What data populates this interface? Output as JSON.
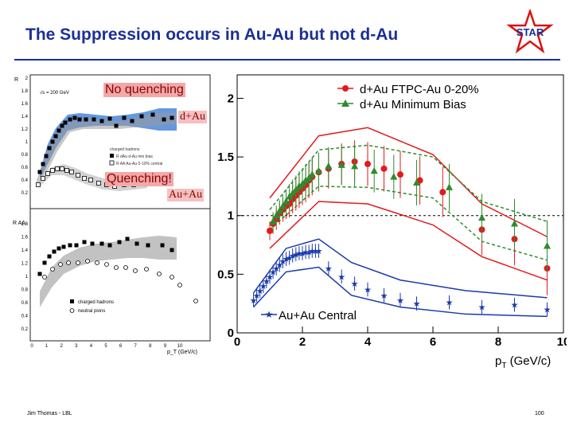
{
  "slide": {
    "title": "The Suppression occurs in Au-Au but not d-Au",
    "footer_author": "Jim Thomas - LBL",
    "page_number": "100",
    "logo_text": "STAR"
  },
  "overlays": {
    "no_quenching": "No quenching",
    "dau": "d+Au",
    "quenching": "Quenching!",
    "auau": "Au+Au"
  },
  "left_panel": {
    "top_ylabel": "R",
    "energy": "√s = 200 GeV",
    "legend_title": "charged hadrons",
    "legend_items": [
      "R dAu d-Au min bias",
      "R AA Au-Au 0-10% central"
    ],
    "bottom_ylabel": "R AA",
    "bottom_legend": [
      "charged hadrons",
      "neutral pions"
    ],
    "xlabel": "p_T (GeV/c)",
    "top_y_ticks": [
      "2",
      "1.8",
      "1.6",
      "1.4",
      "1.2",
      "1",
      "0.8",
      "0.6",
      "0.4",
      "0.2"
    ],
    "bottom_y_ticks": [
      "1.8",
      "1.6",
      "1.4",
      "1.2",
      "1",
      "0.8",
      "0.6",
      "0.4",
      "0.2"
    ],
    "x_ticks": [
      "0",
      "1",
      "2",
      "3",
      "4",
      "5",
      "6",
      "7",
      "8",
      "9",
      "10"
    ]
  },
  "chart_data": {
    "type": "scatter",
    "xlabel": "p_T (GeV/c)",
    "ylabel": "",
    "xlim": [
      0,
      10
    ],
    "ylim": [
      0,
      2.2
    ],
    "x_ticks": [
      "0",
      "2",
      "4",
      "6",
      "8",
      "10"
    ],
    "y_ticks": [
      "0",
      "0.5",
      "1",
      "1.5",
      "2"
    ],
    "reference_line": 1,
    "series": [
      {
        "name": "d+Au FTPC-Au 0-20%",
        "color": "#e31a1c",
        "marker": "circle",
        "x": [
          1.0,
          1.1,
          1.2,
          1.3,
          1.4,
          1.5,
          1.6,
          1.7,
          1.8,
          1.9,
          2.0,
          2.1,
          2.2,
          2.3,
          2.5,
          2.8,
          3.2,
          3.6,
          4.0,
          4.5,
          5.0,
          5.6,
          6.3,
          7.5,
          8.5,
          9.5
        ],
        "y": [
          0.87,
          0.93,
          0.97,
          1.02,
          1.05,
          1.08,
          1.1,
          1.14,
          1.17,
          1.2,
          1.23,
          1.26,
          1.3,
          1.33,
          1.37,
          1.4,
          1.44,
          1.46,
          1.44,
          1.4,
          1.35,
          1.3,
          1.2,
          0.88,
          0.8,
          0.55
        ]
      },
      {
        "name": "d+Au Minimum Bias",
        "color": "#2e8b2e",
        "marker": "triangle",
        "x": [
          1.1,
          1.2,
          1.3,
          1.4,
          1.5,
          1.6,
          1.7,
          1.8,
          1.9,
          2.0,
          2.1,
          2.2,
          2.3,
          2.5,
          2.8,
          3.2,
          3.6,
          4.2,
          4.8,
          5.5,
          6.5,
          7.5,
          8.5,
          9.5
        ],
        "y": [
          0.95,
          1.0,
          1.04,
          1.08,
          1.12,
          1.16,
          1.19,
          1.22,
          1.25,
          1.27,
          1.3,
          1.32,
          1.35,
          1.38,
          1.42,
          1.43,
          1.42,
          1.38,
          1.33,
          1.28,
          1.24,
          0.98,
          0.93,
          0.74
        ]
      },
      {
        "name": "Au+Au Central",
        "color": "#1a3aaa",
        "marker": "star",
        "x": [
          0.5,
          0.6,
          0.7,
          0.8,
          0.9,
          1.0,
          1.1,
          1.2,
          1.3,
          1.4,
          1.5,
          1.6,
          1.7,
          1.8,
          1.9,
          2.0,
          2.1,
          2.2,
          2.3,
          2.4,
          2.5,
          2.8,
          3.2,
          3.6,
          4.0,
          4.5,
          5.0,
          5.5,
          6.5,
          7.5,
          8.5,
          9.5
        ],
        "y": [
          0.28,
          0.32,
          0.36,
          0.4,
          0.44,
          0.48,
          0.52,
          0.55,
          0.58,
          0.61,
          0.63,
          0.64,
          0.66,
          0.67,
          0.68,
          0.68,
          0.69,
          0.69,
          0.7,
          0.7,
          0.7,
          0.55,
          0.48,
          0.42,
          0.37,
          0.32,
          0.28,
          0.25,
          0.26,
          0.22,
          0.24,
          0.2
        ]
      }
    ],
    "bands": [
      {
        "name": "d+Au FTPC-Au 0-20% upper",
        "color": "#e31a1c",
        "style": "solid",
        "x": [
          1.0,
          2.5,
          4.0,
          6.0,
          7.5,
          9.5
        ],
        "y": [
          1.15,
          1.68,
          1.75,
          1.52,
          1.1,
          0.82
        ]
      },
      {
        "name": "d+Au FTPC-Au 0-20% lower",
        "color": "#e31a1c",
        "style": "solid",
        "x": [
          1.0,
          2.5,
          4.0,
          6.0,
          7.5,
          9.5
        ],
        "y": [
          0.72,
          1.12,
          1.1,
          0.92,
          0.65,
          0.45
        ]
      },
      {
        "name": "d+Au Minimum Bias upper",
        "color": "#2e8b2e",
        "style": "dashed",
        "x": [
          1.0,
          2.5,
          4.0,
          6.0,
          7.5,
          9.5
        ],
        "y": [
          1.05,
          1.56,
          1.6,
          1.5,
          1.12,
          0.95
        ]
      },
      {
        "name": "d+Au Minimum Bias lower",
        "color": "#2e8b2e",
        "style": "dashed",
        "x": [
          1.0,
          2.5,
          4.0,
          6.0,
          7.5,
          9.5
        ],
        "y": [
          0.88,
          1.25,
          1.24,
          1.15,
          0.78,
          0.62
        ]
      },
      {
        "name": "Au+Au Central upper",
        "color": "#1a3aaa",
        "style": "solid",
        "x": [
          0.5,
          1.5,
          2.5,
          3.5,
          5.0,
          7.0,
          9.5
        ],
        "y": [
          0.34,
          0.72,
          0.8,
          0.6,
          0.45,
          0.36,
          0.3
        ]
      },
      {
        "name": "Au+Au Central lower",
        "color": "#1a3aaa",
        "style": "solid",
        "x": [
          0.5,
          1.5,
          2.5,
          3.5,
          5.0,
          7.0,
          9.5
        ],
        "y": [
          0.22,
          0.52,
          0.56,
          0.32,
          0.22,
          0.16,
          0.14
        ]
      }
    ]
  },
  "colors": {
    "title": "#1b2f96",
    "dau_central": "#e31a1c",
    "dau_minbias": "#2e8b2e",
    "auau": "#1a3aaa",
    "overlay_bg": "#f3a8a8"
  }
}
